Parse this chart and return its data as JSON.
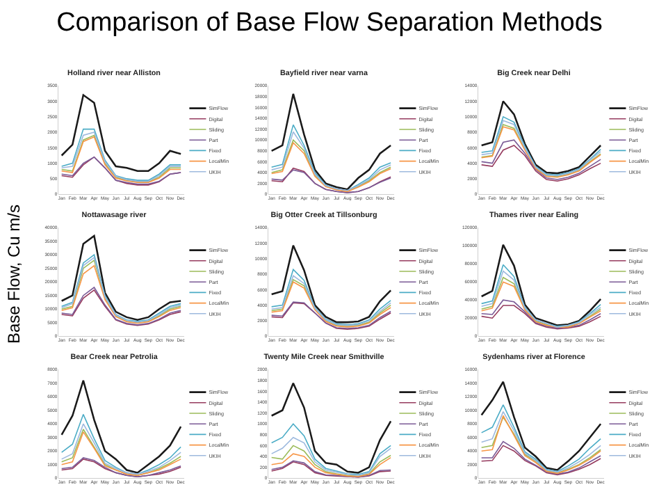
{
  "chart_data": [
    {
      "type": "other",
      "title": "Comparison of Base Flow Separation Methods",
      "ylabel": "Base Flow, Cu m/s"
    },
    {
      "type": "line",
      "title": "Holland river near Alliston",
      "categories": [
        "Jan",
        "Feb",
        "Mar",
        "Apr",
        "May",
        "Jun",
        "Jul",
        "Aug",
        "Sep",
        "Oct",
        "Nov",
        "Dec"
      ],
      "ylim": [
        0,
        3500
      ],
      "yticks": [
        0,
        500,
        1000,
        1500,
        2000,
        2500,
        3000,
        3500
      ],
      "legend": "right",
      "series": [
        {
          "name": "SimFlow",
          "color": "#1a1a1a",
          "values": [
            1250,
            1600,
            3200,
            2950,
            1400,
            900,
            850,
            750,
            750,
            1000,
            1400,
            1300
          ]
        },
        {
          "name": "Digital",
          "color": "#953a5e",
          "values": [
            600,
            550,
            950,
            1200,
            850,
            450,
            350,
            300,
            300,
            400,
            650,
            700
          ]
        },
        {
          "name": "Sliding",
          "color": "#9bbb59",
          "values": [
            800,
            750,
            1750,
            1900,
            1000,
            550,
            450,
            400,
            400,
            550,
            850,
            850
          ]
        },
        {
          "name": "Part",
          "color": "#7a5a96",
          "values": [
            650,
            600,
            1000,
            1200,
            850,
            450,
            380,
            330,
            330,
            420,
            650,
            700
          ]
        },
        {
          "name": "Fixed",
          "color": "#4bacc6",
          "values": [
            900,
            1000,
            2100,
            2100,
            1100,
            600,
            500,
            450,
            450,
            650,
            950,
            950
          ]
        },
        {
          "name": "LocalMin",
          "color": "#f79646",
          "values": [
            750,
            700,
            1700,
            1850,
            950,
            520,
            430,
            380,
            380,
            520,
            800,
            800
          ]
        },
        {
          "name": "UKIH",
          "color": "#9db9de",
          "values": [
            850,
            900,
            1900,
            2000,
            1050,
            580,
            470,
            420,
            420,
            600,
            900,
            900
          ]
        }
      ]
    },
    {
      "type": "line",
      "title": "Bayfield river near varna",
      "categories": [
        "Jan",
        "Feb",
        "Mar",
        "Apr",
        "May",
        "Jun",
        "Jul",
        "Aug",
        "Sep",
        "Oct",
        "Nov",
        "Dec"
      ],
      "ylim": [
        0,
        20000
      ],
      "yticks": [
        0,
        2000,
        4000,
        6000,
        8000,
        10000,
        12000,
        14000,
        16000,
        18000,
        20000
      ],
      "legend": "right",
      "series": [
        {
          "name": "SimFlow",
          "color": "#1a1a1a",
          "values": [
            8000,
            9000,
            18500,
            11000,
            4500,
            2000,
            1300,
            900,
            3000,
            4500,
            7500,
            9000
          ]
        },
        {
          "name": "Digital",
          "color": "#953a5e",
          "values": [
            2500,
            2300,
            4800,
            4200,
            2000,
            900,
            500,
            300,
            500,
            1200,
            2300,
            3200
          ]
        },
        {
          "name": "Sliding",
          "color": "#9bbb59",
          "values": [
            4000,
            4500,
            10000,
            8000,
            3500,
            1500,
            900,
            600,
            1500,
            2500,
            4000,
            5000
          ]
        },
        {
          "name": "Part",
          "color": "#7a5a96",
          "values": [
            2800,
            2600,
            4500,
            4000,
            2000,
            900,
            500,
            300,
            500,
            1200,
            2200,
            3000
          ]
        },
        {
          "name": "Fixed",
          "color": "#4bacc6",
          "values": [
            5000,
            5500,
            12800,
            9000,
            4000,
            1700,
            1000,
            700,
            1800,
            3000,
            5000,
            5800
          ]
        },
        {
          "name": "LocalMin",
          "color": "#f79646",
          "values": [
            3800,
            4200,
            9500,
            7500,
            3300,
            1400,
            800,
            500,
            1300,
            2300,
            3800,
            4700
          ]
        },
        {
          "name": "UKIH",
          "color": "#9db9de",
          "values": [
            4500,
            5000,
            11500,
            8500,
            3700,
            1600,
            1000,
            700,
            1600,
            2700,
            4500,
            5400
          ]
        }
      ]
    },
    {
      "type": "line",
      "title": "Big Creek near Delhi",
      "categories": [
        "Jan",
        "Feb",
        "Mar",
        "Apr",
        "May",
        "Jun",
        "Jul",
        "Aug",
        "Sep",
        "Oct",
        "Nov",
        "Dec"
      ],
      "ylim": [
        0,
        14000
      ],
      "yticks": [
        0,
        2000,
        4000,
        6000,
        8000,
        10000,
        12000,
        14000
      ],
      "legend": "right",
      "series": [
        {
          "name": "SimFlow",
          "color": "#1a1a1a",
          "values": [
            6300,
            6700,
            12000,
            10300,
            6500,
            3800,
            2800,
            2700,
            3000,
            3500,
            4900,
            6300
          ]
        },
        {
          "name": "Digital",
          "color": "#953a5e",
          "values": [
            3800,
            3600,
            5700,
            6300,
            5000,
            3000,
            1900,
            1700,
            2000,
            2500,
            3300,
            4000
          ]
        },
        {
          "name": "Sliding",
          "color": "#9bbb59",
          "values": [
            4800,
            5000,
            9000,
            8500,
            5800,
            3400,
            2400,
            2300,
            2600,
            3100,
            4200,
            5200
          ]
        },
        {
          "name": "Part",
          "color": "#7a5a96",
          "values": [
            4200,
            4000,
            6700,
            7000,
            5300,
            3200,
            2100,
            1900,
            2200,
            2700,
            3600,
            4500
          ]
        },
        {
          "name": "Fixed",
          "color": "#4bacc6",
          "values": [
            5400,
            5600,
            10000,
            9300,
            6200,
            3600,
            2600,
            2500,
            2800,
            3300,
            4500,
            5800
          ]
        },
        {
          "name": "LocalMin",
          "color": "#f79646",
          "values": [
            4700,
            4900,
            8700,
            8300,
            5700,
            3300,
            2300,
            2200,
            2500,
            3000,
            4100,
            5100
          ]
        },
        {
          "name": "UKIH",
          "color": "#9db9de",
          "values": [
            5100,
            5300,
            9500,
            9000,
            6000,
            3500,
            2500,
            2400,
            2700,
            3200,
            4400,
            5500
          ]
        }
      ]
    },
    {
      "type": "line",
      "title": "Nottawasage river",
      "categories": [
        "Jan",
        "Feb",
        "Mar",
        "Apr",
        "May",
        "Jun",
        "Jul",
        "Aug",
        "Sep",
        "Oct",
        "Nov",
        "Dec"
      ],
      "ylim": [
        0,
        40000
      ],
      "yticks": [
        0,
        5000,
        10000,
        15000,
        20000,
        25000,
        30000,
        35000,
        40000
      ],
      "legend": "right",
      "series": [
        {
          "name": "SimFlow",
          "color": "#1a1a1a",
          "values": [
            13000,
            15000,
            34000,
            37000,
            16000,
            9000,
            7000,
            6000,
            7000,
            10000,
            12500,
            13000
          ]
        },
        {
          "name": "Digital",
          "color": "#953a5e",
          "values": [
            8000,
            7500,
            14000,
            17000,
            11000,
            6000,
            4500,
            4000,
            4500,
            6000,
            8000,
            9000
          ]
        },
        {
          "name": "Sliding",
          "color": "#9bbb59",
          "values": [
            10000,
            11000,
            25000,
            28000,
            14000,
            7500,
            5500,
            5000,
            5500,
            7500,
            10000,
            11000
          ]
        },
        {
          "name": "Part",
          "color": "#7a5a96",
          "values": [
            8500,
            8000,
            15000,
            18000,
            11500,
            6200,
            4700,
            4200,
            4700,
            6300,
            8500,
            9500
          ]
        },
        {
          "name": "Fixed",
          "color": "#4bacc6",
          "values": [
            11000,
            12500,
            27000,
            30000,
            15000,
            8000,
            6000,
            5500,
            6000,
            8500,
            11000,
            12000
          ]
        },
        {
          "name": "LocalMin",
          "color": "#f79646",
          "values": [
            9500,
            10500,
            23000,
            26000,
            13500,
            7200,
            5300,
            4800,
            5300,
            7200,
            9500,
            10500
          ]
        },
        {
          "name": "UKIH",
          "color": "#9db9de",
          "values": [
            10500,
            12000,
            26000,
            29000,
            14500,
            7800,
            5800,
            5200,
            5800,
            8000,
            10500,
            11500
          ]
        }
      ]
    },
    {
      "type": "line",
      "title": "Big Otter Creek at Tillsonburg",
      "categories": [
        "Jan",
        "Feb",
        "Mar",
        "Apr",
        "May",
        "Jun",
        "Jul",
        "Aug",
        "Sep",
        "Oct",
        "Nov",
        "Dec"
      ],
      "ylim": [
        0,
        14000
      ],
      "yticks": [
        0,
        2000,
        4000,
        6000,
        8000,
        10000,
        12000,
        14000
      ],
      "legend": "right",
      "series": [
        {
          "name": "SimFlow",
          "color": "#1a1a1a",
          "values": [
            5400,
            5800,
            11700,
            8500,
            4000,
            2500,
            1800,
            1800,
            1900,
            2500,
            4500,
            5900
          ]
        },
        {
          "name": "Digital",
          "color": "#953a5e",
          "values": [
            2500,
            2400,
            4300,
            4200,
            3000,
            1700,
            1000,
            900,
            1000,
            1300,
            2200,
            3000
          ]
        },
        {
          "name": "Sliding",
          "color": "#9bbb59",
          "values": [
            3300,
            3500,
            7300,
            6500,
            3500,
            2000,
            1400,
            1300,
            1400,
            1800,
            3000,
            4000
          ]
        },
        {
          "name": "Part",
          "color": "#7a5a96",
          "values": [
            2700,
            2600,
            4400,
            4300,
            3000,
            1700,
            1100,
            1000,
            1100,
            1400,
            2400,
            3200
          ]
        },
        {
          "name": "Fixed",
          "color": "#4bacc6",
          "values": [
            3800,
            4000,
            8600,
            7200,
            3700,
            2200,
            1600,
            1500,
            1600,
            2100,
            3500,
            4600
          ]
        },
        {
          "name": "LocalMin",
          "color": "#f79646",
          "values": [
            3100,
            3300,
            7000,
            6200,
            3400,
            1900,
            1300,
            1200,
            1300,
            1700,
            2800,
            3700
          ]
        },
        {
          "name": "UKIH",
          "color": "#9db9de",
          "values": [
            3500,
            3700,
            7800,
            6800,
            3600,
            2100,
            1500,
            1400,
            1500,
            2000,
            3200,
            4300
          ]
        }
      ]
    },
    {
      "type": "line",
      "title": "Thames river near Ealing",
      "categories": [
        "Jan",
        "Feb",
        "Mar",
        "Apr",
        "May",
        "Jun",
        "Jul",
        "Aug",
        "Sep",
        "Oct",
        "Nov",
        "Dec"
      ],
      "ylim": [
        0,
        120000
      ],
      "yticks": [
        0,
        20000,
        40000,
        60000,
        80000,
        100000,
        120000
      ],
      "legend": "right",
      "series": [
        {
          "name": "SimFlow",
          "color": "#1a1a1a",
          "values": [
            44000,
            50000,
            101000,
            78000,
            35000,
            20000,
            16000,
            12000,
            13000,
            17000,
            28000,
            41000
          ]
        },
        {
          "name": "Digital",
          "color": "#953a5e",
          "values": [
            22000,
            20000,
            34000,
            34000,
            25000,
            14000,
            10000,
            8000,
            9000,
            11000,
            16000,
            22000
          ]
        },
        {
          "name": "Sliding",
          "color": "#9bbb59",
          "values": [
            30000,
            33000,
            65000,
            58000,
            30000,
            17000,
            13000,
            10000,
            11000,
            14000,
            22000,
            30000
          ]
        },
        {
          "name": "Part",
          "color": "#7a5a96",
          "values": [
            25000,
            24000,
            40000,
            38000,
            27000,
            15000,
            11000,
            9000,
            10000,
            12000,
            18000,
            25000
          ]
        },
        {
          "name": "Fixed",
          "color": "#4bacc6",
          "values": [
            36000,
            39000,
            79000,
            66000,
            32000,
            18000,
            14000,
            11000,
            12000,
            16000,
            25000,
            35000
          ]
        },
        {
          "name": "LocalMin",
          "color": "#f79646",
          "values": [
            28000,
            31000,
            60000,
            55000,
            29000,
            16000,
            12000,
            10000,
            10000,
            14000,
            21000,
            28000
          ]
        },
        {
          "name": "UKIH",
          "color": "#9db9de",
          "values": [
            33000,
            36000,
            72000,
            62000,
            31000,
            18000,
            14000,
            10000,
            12000,
            15000,
            24000,
            32000
          ]
        }
      ]
    },
    {
      "type": "line",
      "title": "Bear Creek near Petrolia",
      "categories": [
        "Jan",
        "Feb",
        "Mar",
        "Apr",
        "May",
        "Jun",
        "Jul",
        "Aug",
        "Sep",
        "Oct",
        "Nov",
        "Dec"
      ],
      "ylim": [
        0,
        8000
      ],
      "yticks": [
        0,
        1000,
        2000,
        3000,
        4000,
        5000,
        6000,
        7000,
        8000
      ],
      "legend": "right",
      "series": [
        {
          "name": "SimFlow",
          "color": "#1a1a1a",
          "values": [
            3200,
            4600,
            7200,
            4300,
            2000,
            1400,
            600,
            400,
            1000,
            1600,
            2400,
            3800
          ]
        },
        {
          "name": "Digital",
          "color": "#953a5e",
          "values": [
            600,
            700,
            1400,
            1200,
            700,
            400,
            200,
            100,
            200,
            300,
            500,
            800
          ]
        },
        {
          "name": "Sliding",
          "color": "#9bbb59",
          "values": [
            1200,
            1500,
            3600,
            2300,
            1000,
            600,
            300,
            200,
            400,
            700,
            1100,
            1600
          ]
        },
        {
          "name": "Part",
          "color": "#7a5a96",
          "values": [
            700,
            800,
            1500,
            1300,
            800,
            400,
            200,
            100,
            200,
            400,
            600,
            900
          ]
        },
        {
          "name": "Fixed",
          "color": "#4bacc6",
          "values": [
            1900,
            2500,
            4700,
            2900,
            1300,
            800,
            400,
            300,
            600,
            1000,
            1500,
            2300
          ]
        },
        {
          "name": "LocalMin",
          "color": "#f79646",
          "values": [
            1000,
            1200,
            3400,
            2200,
            900,
            600,
            300,
            200,
            400,
            600,
            1000,
            1400
          ]
        },
        {
          "name": "UKIH",
          "color": "#9db9de",
          "values": [
            1400,
            1800,
            4000,
            2600,
            1100,
            700,
            400,
            300,
            500,
            800,
            1300,
            1900
          ]
        }
      ]
    },
    {
      "type": "line",
      "title": "Twenty Mile Creek near Smithville",
      "categories": [
        "Jan",
        "Feb",
        "Mar",
        "Apr",
        "May",
        "Jun",
        "Jul",
        "Aug",
        "Sep",
        "Oct",
        "Nov",
        "Dec"
      ],
      "ylim": [
        0,
        2000
      ],
      "yticks": [
        0,
        200,
        400,
        600,
        800,
        1000,
        1200,
        1400,
        1600,
        1800,
        2000
      ],
      "legend": "right",
      "series": [
        {
          "name": "SimFlow",
          "color": "#1a1a1a",
          "values": [
            1150,
            1250,
            1750,
            1300,
            500,
            280,
            250,
            120,
            100,
            200,
            700,
            1050
          ]
        },
        {
          "name": "Digital",
          "color": "#953a5e",
          "values": [
            130,
            180,
            300,
            250,
            100,
            50,
            40,
            30,
            20,
            40,
            120,
            130
          ]
        },
        {
          "name": "Sliding",
          "color": "#9bbb59",
          "values": [
            380,
            350,
            600,
            500,
            250,
            120,
            80,
            50,
            40,
            80,
            300,
            420
          ]
        },
        {
          "name": "Part",
          "color": "#7a5a96",
          "values": [
            160,
            200,
            320,
            280,
            120,
            60,
            50,
            30,
            20,
            50,
            140,
            150
          ]
        },
        {
          "name": "Fixed",
          "color": "#4bacc6",
          "values": [
            650,
            750,
            1000,
            780,
            350,
            180,
            130,
            80,
            70,
            120,
            450,
            600
          ]
        },
        {
          "name": "LocalMin",
          "color": "#f79646",
          "values": [
            250,
            280,
            450,
            400,
            200,
            100,
            70,
            40,
            30,
            70,
            250,
            380
          ]
        },
        {
          "name": "UKIH",
          "color": "#9db9de",
          "values": [
            450,
            550,
            750,
            650,
            300,
            150,
            110,
            70,
            50,
            100,
            400,
            550
          ]
        }
      ]
    },
    {
      "type": "line",
      "title": "Sydenhams river at Florence",
      "categories": [
        "Jan",
        "Feb",
        "Mar",
        "Apr",
        "May",
        "Jun",
        "Jul",
        "Aug",
        "Sep",
        "Oct",
        "Nov",
        "Dec"
      ],
      "ylim": [
        0,
        16000
      ],
      "yticks": [
        0,
        2000,
        4000,
        6000,
        8000,
        10000,
        12000,
        14000,
        16000
      ],
      "legend": "right",
      "series": [
        {
          "name": "SimFlow",
          "color": "#1a1a1a",
          "values": [
            9300,
            11500,
            14200,
            9000,
            4500,
            3200,
            1500,
            1200,
            2500,
            4000,
            6000,
            8000
          ]
        },
        {
          "name": "Digital",
          "color": "#953a5e",
          "values": [
            2500,
            2600,
            4800,
            4000,
            2600,
            1800,
            800,
            500,
            800,
            1300,
            2000,
            2900
          ]
        },
        {
          "name": "Sliding",
          "color": "#9bbb59",
          "values": [
            4500,
            4800,
            9000,
            6500,
            3500,
            2500,
            1100,
            800,
            1300,
            2000,
            3000,
            4200
          ]
        },
        {
          "name": "Part",
          "color": "#7a5a96",
          "values": [
            3000,
            3000,
            5400,
            4400,
            2800,
            1900,
            900,
            600,
            900,
            1500,
            2400,
            3300
          ]
        },
        {
          "name": "Fixed",
          "color": "#4bacc6",
          "values": [
            6700,
            7500,
            10800,
            7500,
            3900,
            2800,
            1300,
            1000,
            1800,
            2800,
            4400,
            5800
          ]
        },
        {
          "name": "LocalMin",
          "color": "#f79646",
          "values": [
            4000,
            4200,
            9200,
            6300,
            3300,
            2300,
            1000,
            700,
            1200,
            1900,
            2800,
            4000
          ]
        },
        {
          "name": "UKIH",
          "color": "#9db9de",
          "values": [
            5300,
            5800,
            9800,
            7000,
            3700,
            2600,
            1200,
            900,
            1500,
            2400,
            3500,
            4800
          ]
        }
      ]
    }
  ]
}
